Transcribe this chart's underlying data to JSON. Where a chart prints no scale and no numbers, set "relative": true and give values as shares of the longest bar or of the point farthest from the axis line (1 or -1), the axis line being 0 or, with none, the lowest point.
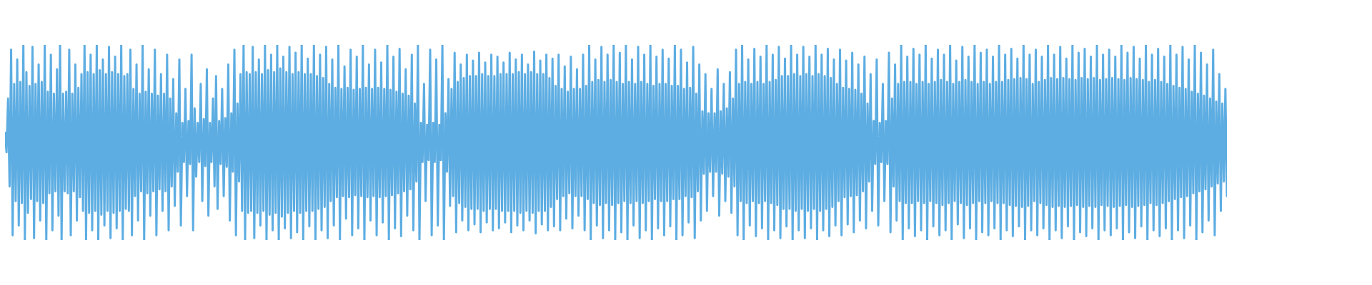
{
  "chart_data": {
    "type": "line",
    "relative": true,
    "color": "#5dade2",
    "categories": [
      null,
      null,
      null,
      null,
      null,
      null,
      null,
      null,
      null,
      null,
      null,
      null,
      null,
      null,
      null,
      null,
      null,
      null,
      null,
      null,
      null,
      null,
      null,
      null,
      null,
      null,
      null,
      null,
      null,
      null,
      null,
      null,
      null,
      null,
      null,
      null,
      null,
      null,
      null,
      null,
      null,
      null,
      null,
      null,
      null,
      null,
      null,
      null,
      null,
      null,
      null,
      null,
      null,
      null,
      null,
      null,
      null,
      null,
      null,
      null,
      null,
      null,
      null,
      null,
      null,
      null,
      null,
      null,
      null,
      null,
      null,
      null,
      null,
      null,
      null,
      null,
      null,
      null,
      null,
      null,
      null,
      null,
      null,
      null,
      null,
      null,
      null,
      null,
      null,
      null,
      null,
      null,
      null,
      null,
      null,
      null,
      null,
      null,
      null,
      null,
      null,
      null,
      null,
      null,
      null,
      null,
      null,
      null,
      null,
      null,
      null,
      null,
      null,
      null,
      null,
      null,
      null,
      null,
      null,
      null,
      null,
      null,
      null,
      null,
      null,
      null,
      null,
      null,
      null,
      null,
      null,
      null,
      null,
      null,
      null,
      null,
      null,
      null,
      null,
      null,
      null,
      null,
      null,
      null,
      null,
      null,
      null,
      null,
      null,
      null,
      null,
      null,
      null,
      null,
      null,
      null,
      null,
      null,
      null,
      null,
      null,
      null,
      null,
      null,
      null,
      null,
      null,
      null,
      null,
      null,
      null,
      null,
      null,
      null,
      null,
      null,
      null,
      null,
      null,
      null,
      null,
      null,
      null,
      null,
      null,
      null,
      null,
      null,
      null,
      null,
      null,
      null,
      null,
      null,
      null,
      null,
      null,
      null,
      null,
      null,
      null,
      null,
      null,
      null,
      null,
      null,
      null,
      null,
      null,
      null,
      null,
      null,
      null,
      null,
      null,
      null,
      null,
      null,
      null,
      null,
      null,
      null,
      null,
      null,
      null,
      null,
      null,
      null,
      null,
      null,
      null,
      null,
      null,
      null,
      null,
      null,
      null,
      null,
      null,
      null,
      null,
      null,
      null,
      null,
      null,
      null,
      null,
      null,
      null,
      null,
      null,
      null,
      null,
      null,
      null,
      null,
      null,
      null,
      null,
      null,
      null,
      null,
      null,
      null,
      null,
      null,
      null,
      null,
      null,
      null,
      null,
      null,
      null,
      null,
      null,
      null,
      null,
      null,
      null,
      null,
      null,
      null,
      null,
      null,
      null,
      null,
      null,
      null,
      null,
      null,
      null,
      null,
      null,
      null,
      null,
      null,
      null,
      null,
      null,
      null,
      null,
      null,
      null,
      null,
      null,
      null,
      null,
      null,
      null,
      null,
      null,
      null,
      null,
      null,
      null,
      null,
      null,
      null,
      null,
      null,
      null,
      null,
      null,
      null,
      null,
      null,
      null,
      null,
      null,
      null,
      null,
      null,
      null,
      null,
      null,
      null,
      null,
      null,
      null,
      null,
      null,
      null,
      null,
      null,
      null,
      null,
      null,
      null,
      null,
      null,
      null,
      null,
      null,
      null,
      null,
      null,
      null,
      null,
      null,
      null,
      null,
      null,
      null,
      null,
      null,
      null,
      null,
      null,
      null,
      null,
      null,
      null,
      null,
      null,
      null,
      null,
      null,
      null,
      null,
      null,
      null,
      null,
      null,
      null,
      null,
      null,
      null,
      null,
      null,
      null,
      null,
      null,
      null,
      null,
      null,
      null,
      null,
      null,
      null,
      null,
      null,
      null,
      null,
      null,
      null,
      null,
      null,
      null,
      null,
      null,
      null,
      null,
      null,
      null,
      null,
      null,
      null,
      null,
      null,
      null,
      null,
      null,
      null,
      null,
      null,
      null,
      null,
      null,
      null,
      null,
      null,
      null,
      null,
      null,
      null,
      null,
      null,
      null,
      null,
      null,
      null,
      null,
      null,
      null,
      null,
      null,
      null,
      null,
      null,
      null,
      null,
      null,
      null,
      null,
      null,
      null,
      null,
      null,
      null,
      null,
      null,
      null,
      null,
      null,
      null,
      null,
      null,
      null,
      null,
      null,
      null,
      null,
      null,
      null,
      null,
      null,
      null,
      null,
      null,
      null,
      null,
      null,
      null,
      null,
      null,
      null,
      null,
      null,
      null,
      null,
      null,
      null,
      null,
      null,
      null,
      null,
      null,
      null,
      null,
      null,
      null,
      null,
      null,
      null,
      null,
      null,
      null,
      null,
      null,
      null,
      null,
      null,
      null,
      null,
      null,
      null,
      null,
      null,
      null,
      null,
      null,
      null,
      null,
      null,
      null,
      null,
      null,
      null,
      null,
      null,
      null,
      null,
      null,
      null,
      null,
      null,
      null,
      null,
      null,
      null,
      null,
      null,
      null,
      null,
      null,
      null,
      null,
      null,
      null,
      null,
      null,
      null,
      null,
      null,
      null,
      null,
      null,
      null,
      null,
      null,
      null,
      null,
      null,
      null,
      null,
      null,
      null,
      null,
      null,
      null,
      null,
      null,
      null,
      null,
      null,
      null,
      null,
      null,
      null,
      null,
      null,
      null,
      null,
      null,
      null,
      null,
      null,
      null,
      null,
      null,
      null,
      null,
      null,
      null,
      null,
      null,
      null,
      null,
      null,
      null,
      null,
      null,
      null,
      null,
      null,
      null,
      null,
      null,
      null,
      null,
      null,
      null,
      null,
      null,
      null,
      null,
      null,
      null,
      null,
      null,
      null,
      null,
      null,
      null,
      null,
      null,
      null,
      null,
      null,
      null,
      null,
      null,
      null,
      null,
      null,
      null,
      null,
      null,
      null,
      null,
      null,
      null,
      null,
      null,
      null,
      null,
      null,
      null,
      null,
      null,
      null,
      null,
      null,
      null,
      null,
      null,
      null,
      null,
      null,
      null,
      null,
      null,
      null,
      null,
      null,
      null,
      null,
      null,
      null,
      null,
      null,
      null,
      null,
      null,
      null,
      null,
      null,
      null,
      null,
      null,
      null,
      null,
      null,
      null,
      null,
      null,
      null,
      null,
      null,
      null,
      null,
      null,
      null,
      null,
      null,
      null,
      null,
      null,
      null,
      null,
      null,
      null,
      null,
      null,
      null,
      null,
      null,
      null,
      null,
      null,
      null,
      null,
      null,
      null,
      null,
      null,
      null,
      null,
      null,
      null,
      null,
      null,
      null,
      null,
      null,
      null,
      null,
      null,
      null,
      null,
      null,
      null,
      null,
      null,
      null,
      null,
      null,
      null,
      null,
      null,
      null,
      null,
      null,
      null,
      null,
      null,
      null,
      null,
      null,
      null,
      null,
      null,
      null,
      null,
      null,
      null,
      null,
      null,
      null,
      null,
      null,
      null,
      null,
      null,
      null,
      null,
      null,
      null,
      null,
      null,
      null,
      null,
      null,
      null,
      null,
      null,
      null,
      null,
      null,
      null,
      null,
      null,
      null,
      null,
      null,
      null,
      null,
      null,
      null,
      null,
      null,
      null,
      null,
      null,
      null,
      null,
      null,
      null,
      null,
      null
    ],
    "values": [
      0.55,
      0.45,
      0.725,
      0.275,
      0.975,
      0.025,
      0.8,
      0.2,
      0.925,
      0.075,
      0.81,
      0.19,
      1,
      0,
      0.86,
      0.14,
      0.79,
      0.21,
      0.99,
      0.01,
      0.8,
      0.2,
      0.9,
      0.1,
      0.81,
      0.19,
      1,
      0,
      0.76,
      0.24,
      0.95,
      0.05,
      0.75,
      0.25,
      0.875,
      0.125,
      1,
      0,
      0.75,
      0.25,
      0.76,
      0.24,
      0.975,
      0.025,
      0.75,
      0.25,
      0.9,
      0.1,
      0.78,
      0.22,
      0.85,
      0.15,
      1,
      0,
      0.86,
      0.14,
      0.95,
      0.05,
      0.85,
      0.15,
      1,
      0,
      0.87,
      0.13,
      0.925,
      0.075,
      0.85,
      0.15,
      0.99,
      0.01,
      0.86,
      0.14,
      0.94,
      0.06,
      0.85,
      0.15,
      1,
      0,
      0.84,
      0.16,
      0.85,
      0.15,
      0.975,
      0.025,
      0.775,
      0.225,
      0.9,
      0.1,
      0.75,
      0.25,
      1,
      0,
      0.76,
      0.24,
      0.875,
      0.125,
      0.75,
      0.25,
      0.975,
      0.025,
      0.74,
      0.26,
      0.85,
      0.15,
      0.75,
      0.25,
      0.95,
      0.05,
      0.725,
      0.275,
      0.825,
      0.175,
      0.65,
      0.35,
      0.925,
      0.075,
      0.6,
      0.4,
      0.775,
      0.225,
      0.61,
      0.39,
      0.95,
      0.05,
      0.675,
      0.325,
      0.6,
      0.4,
      0.8,
      0.2,
      0.62,
      0.38,
      0.875,
      0.125,
      0.6,
      0.4,
      0.725,
      0.275,
      0.84,
      0.16,
      0.61,
      0.39,
      0.775,
      0.225,
      0.625,
      0.375,
      0.9,
      0.1,
      0.65,
      0.35,
      0.975,
      0.025,
      0.7,
      0.3,
      0.85,
      0.15,
      1,
      0,
      0.86,
      0.14,
      0.85,
      0.15,
      0.99,
      0.01,
      0.86,
      0.14,
      0.925,
      0.075,
      0.85,
      0.15,
      1,
      0,
      0.87,
      0.13,
      0.95,
      0.05,
      0.86,
      0.14,
      1,
      0,
      0.88,
      0.12,
      0.94,
      0.06,
      0.86,
      0.14,
      0.99,
      0.01,
      0.85,
      0.15,
      0.96,
      0.04,
      0.86,
      0.14,
      1,
      0,
      0.85,
      0.15,
      0.93,
      0.07,
      0.85,
      0.15,
      1,
      0,
      0.84,
      0.16,
      0.95,
      0.05,
      0.83,
      0.17,
      0.99,
      0.01,
      0.8,
      0.2,
      0.925,
      0.075,
      0.78,
      0.22,
      1,
      0,
      0.775,
      0.225,
      0.89,
      0.11,
      0.78,
      0.22,
      0.975,
      0.025,
      0.77,
      0.23,
      0.94,
      0.06,
      0.775,
      0.225,
      1,
      0,
      0.78,
      0.22,
      0.9,
      0.1,
      0.775,
      0.225,
      0.975,
      0.025,
      0.78,
      0.22,
      0.91,
      0.09,
      0.775,
      0.225,
      1,
      0,
      0.77,
      0.23,
      0.94,
      0.06,
      0.76,
      0.24,
      0.98,
      0.02,
      0.75,
      0.25,
      0.875,
      0.125,
      0.74,
      0.26,
      0.95,
      0.05,
      0.7,
      0.3,
      1,
      0,
      0.6,
      0.4,
      0.8,
      0.2,
      0.59,
      0.41,
      0.975,
      0.025,
      0.6,
      0.4,
      0.925,
      0.075,
      0.59,
      0.41,
      1,
      0,
      0.65,
      0.35,
      0.825,
      0.175,
      0.775,
      0.225,
      0.96,
      0.04,
      0.81,
      0.19,
      0.9,
      0.1,
      0.83,
      0.17,
      0.95,
      0.05,
      0.84,
      0.16,
      0.92,
      0.08,
      0.84,
      0.16,
      0.96,
      0.04,
      0.85,
      0.15,
      0.91,
      0.09,
      0.84,
      0.16,
      0.95,
      0.05,
      0.84,
      0.16,
      0.94,
      0.06,
      0.85,
      0.15,
      0.91,
      0.09,
      0.85,
      0.15,
      0.96,
      0.04,
      0.85,
      0.15,
      0.925,
      0.075,
      0.86,
      0.14,
      0.95,
      0.05,
      0.85,
      0.15,
      0.9,
      0.1,
      0.86,
      0.14,
      0.965,
      0.035,
      0.85,
      0.15,
      0.92,
      0.08,
      0.85,
      0.15,
      0.95,
      0.05,
      0.83,
      0.17,
      0.93,
      0.07,
      0.79,
      0.21,
      0.95,
      0.05,
      0.775,
      0.225,
      0.89,
      0.11,
      0.76,
      0.24,
      0.94,
      0.06,
      0.775,
      0.225,
      0.875,
      0.125,
      0.775,
      0.225,
      0.95,
      0.05,
      0.79,
      0.21,
      1,
      0,
      0.81,
      0.19,
      0.925,
      0.075,
      0.82,
      0.18,
      0.99,
      0.01,
      0.81,
      0.19,
      0.95,
      0.05,
      0.82,
      0.18,
      1,
      0,
      0.81,
      0.19,
      0.96,
      0.04,
      0.8,
      0.2,
      1,
      0,
      0.81,
      0.19,
      0.925,
      0.075,
      0.8,
      0.2,
      0.99,
      0.01,
      0.81,
      0.19,
      0.95,
      0.05,
      0.8,
      0.2,
      1,
      0,
      0.79,
      0.21,
      0.94,
      0.06,
      0.8,
      0.2,
      0.975,
      0.025,
      0.8,
      0.2,
      0.93,
      0.07,
      0.79,
      0.21,
      1,
      0,
      0.79,
      0.21,
      0.975,
      0.025,
      0.775,
      0.225,
      0.91,
      0.09,
      0.78,
      0.22,
      0.99,
      0.01,
      0.75,
      0.25,
      0.9,
      0.1,
      0.66,
      0.34,
      0.85,
      0.15,
      0.65,
      0.35,
      0.775,
      0.225,
      0.65,
      0.35,
      0.875,
      0.125,
      0.66,
      0.34,
      0.8,
      0.2,
      0.675,
      0.325,
      0.86,
      0.14,
      0.725,
      0.275,
      0.975,
      0.025,
      0.8,
      0.2,
      1,
      0,
      0.81,
      0.19,
      0.925,
      0.075,
      0.8,
      0.2,
      0.98,
      0.02,
      0.81,
      0.19,
      0.94,
      0.06,
      0.8,
      0.2,
      1,
      0,
      0.81,
      0.19,
      0.95,
      0.05,
      0.82,
      0.18,
      0.99,
      0.01,
      0.84,
      0.16,
      0.93,
      0.07,
      0.84,
      0.16,
      1,
      0,
      0.85,
      0.15,
      0.95,
      0.05,
      0.84,
      0.16,
      0.99,
      0.01,
      0.85,
      0.15,
      0.94,
      0.06,
      0.84,
      0.16,
      1,
      0,
      0.85,
      0.15,
      0.95,
      0.05,
      0.84,
      0.16,
      0.98,
      0.02,
      0.83,
      0.17,
      0.925,
      0.075,
      0.8,
      0.2,
      0.975,
      0.025,
      0.78,
      0.22,
      0.92,
      0.08,
      0.775,
      0.225,
      0.96,
      0.04,
      0.77,
      0.23,
      0.9,
      0.1,
      0.75,
      0.25,
      0.94,
      0.06,
      0.7,
      0.3,
      0.85,
      0.15,
      0.61,
      0.39,
      0.925,
      0.075,
      0.6,
      0.4,
      0.8,
      0.2,
      0.61,
      0.39,
      0.96,
      0.04,
      0.725,
      0.275,
      0.9,
      0.1,
      0.8,
      0.2,
      1,
      0,
      0.81,
      0.19,
      0.94,
      0.06,
      0.81,
      0.19,
      0.98,
      0.02,
      0.8,
      0.2,
      0.95,
      0.05,
      0.81,
      0.19,
      1,
      0,
      0.8,
      0.2,
      0.93,
      0.07,
      0.81,
      0.19,
      0.975,
      0.025,
      0.82,
      0.18,
      0.95,
      0.05,
      0.81,
      0.19,
      1,
      0,
      0.8,
      0.2,
      0.92,
      0.08,
      0.81,
      0.19,
      0.99,
      0.01,
      0.82,
      0.18,
      0.94,
      0.06,
      0.81,
      0.19,
      1,
      0,
      0.8,
      0.2,
      0.96,
      0.04,
      0.81,
      0.19,
      0.975,
      0.025,
      0.8,
      0.2,
      0.94,
      0.06,
      0.81,
      0.19,
      1,
      0,
      0.81,
      0.19,
      0.95,
      0.05,
      0.82,
      0.18,
      0.98,
      0.02,
      0.825,
      0.175,
      0.93,
      0.07,
      0.83,
      0.17,
      1,
      0,
      0.825,
      0.175,
      0.95,
      0.05,
      0.8,
      0.2,
      0.975,
      0.025,
      0.81,
      0.19,
      0.94,
      0.06,
      0.82,
      0.18,
      1,
      0,
      0.83,
      0.17,
      0.95,
      0.05,
      0.825,
      0.175,
      0.99,
      0.01,
      0.83,
      0.17,
      0.93,
      0.07,
      0.825,
      0.175,
      1,
      0,
      0.82,
      0.18,
      0.96,
      0.04,
      0.83,
      0.17,
      0.98,
      0.02,
      0.825,
      0.175,
      0.94,
      0.06,
      0.83,
      0.17,
      1,
      0,
      0.82,
      0.18,
      0.95,
      0.05,
      0.825,
      0.175,
      0.975,
      0.025,
      0.83,
      0.17,
      0.94,
      0.06,
      0.825,
      0.175,
      1,
      0,
      0.82,
      0.18,
      0.96,
      0.04,
      0.83,
      0.17,
      0.99,
      0.01,
      0.825,
      0.175,
      0.93,
      0.07,
      0.82,
      0.18,
      1,
      0,
      0.81,
      0.19,
      0.95,
      0.05,
      0.82,
      0.18,
      0.98,
      0.02,
      0.81,
      0.19,
      0.94,
      0.06,
      0.8,
      0.2,
      1,
      0,
      0.79,
      0.21,
      0.95,
      0.05,
      0.78,
      0.22,
      0.99,
      0.01,
      0.775,
      0.225,
      0.925,
      0.075,
      0.76,
      0.24,
      1,
      0,
      0.75,
      0.25,
      0.96,
      0.04,
      0.74,
      0.26,
      0.9,
      0.1,
      0.725,
      0.275,
      0.975,
      0.025,
      0.71,
      0.29,
      0.85,
      0.15,
      0.7,
      0.3,
      0.775,
      0.225
    ]
  }
}
